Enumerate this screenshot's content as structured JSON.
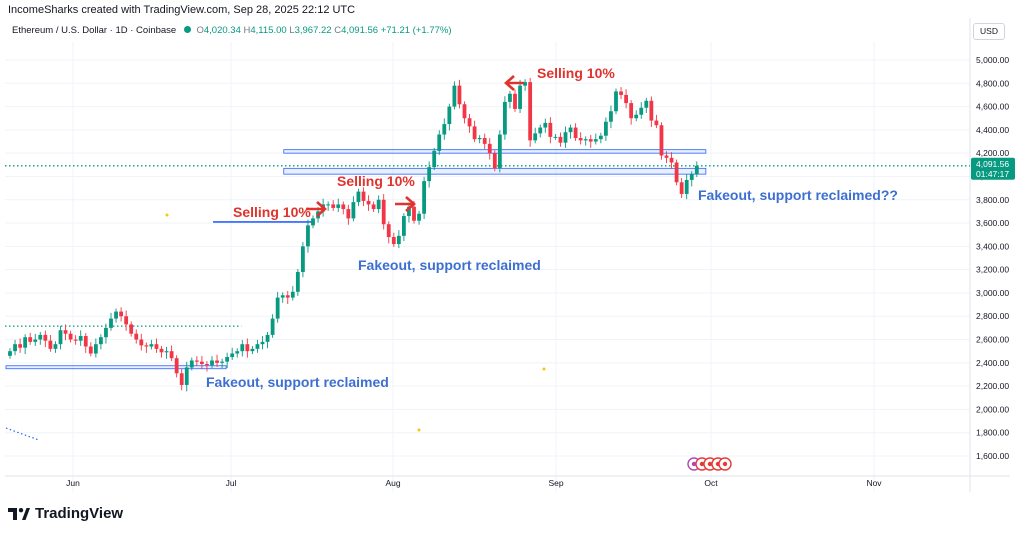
{
  "header": {
    "credit": "IncomeSharks created with TradingView.com, Sep 28, 2025 22:12 UTC",
    "symbol": "Ethereum / U.S. Dollar · 1D · Coinbase",
    "o_label": "O",
    "o_value": "4,020.34",
    "h_label": "H",
    "h_value": "4,115.00",
    "l_label": "L",
    "l_value": "3,967.22",
    "c_label": "C",
    "c_value": "4,091.56",
    "change": "+71.21 (+1.77%)"
  },
  "currency_button": "USD",
  "footer": {
    "brand": "TradingView",
    "logo_icon": "tradingview-logo-icon"
  },
  "colors": {
    "up": "#089981",
    "down": "#f23645",
    "annotation_red": "#e0332d",
    "annotation_blue": "#3d6fd1",
    "level_line": "#2962ff",
    "dotted_green": "#089981"
  },
  "chart_data": {
    "type": "candlestick",
    "ylim": [
      1500,
      5100
    ],
    "y_ticks": [
      "5,000.00",
      "4,800.00",
      "4,600.00",
      "4,400.00",
      "4,200.00",
      "4,000.00",
      "3,800.00",
      "3,600.00",
      "3,400.00",
      "3,200.00",
      "3,000.00",
      "2,800.00",
      "2,600.00",
      "2,400.00",
      "2,200.00",
      "2,000.00",
      "1,800.00",
      "1,600.00"
    ],
    "y_tick_values": [
      5000,
      4800,
      4600,
      4400,
      4200,
      4000,
      3800,
      3600,
      3400,
      3200,
      3000,
      2800,
      2600,
      2400,
      2200,
      2000,
      1800,
      1600
    ],
    "x_ticks": [
      "Jun",
      "Jul",
      "Aug",
      "Sep",
      "Oct",
      "Nov"
    ],
    "price_label": {
      "value": 4091.56,
      "text": "4,091.56",
      "countdown": "01:47:17"
    },
    "closes": [
      2500,
      2560,
      2530,
      2620,
      2580,
      2600,
      2640,
      2590,
      2520,
      2560,
      2680,
      2650,
      2600,
      2590,
      2630,
      2540,
      2480,
      2560,
      2620,
      2700,
      2780,
      2840,
      2800,
      2730,
      2650,
      2600,
      2550,
      2540,
      2560,
      2520,
      2490,
      2500,
      2440,
      2310,
      2210,
      2360,
      2420,
      2410,
      2390,
      2380,
      2420,
      2400,
      2410,
      2450,
      2480,
      2500,
      2560,
      2500,
      2520,
      2560,
      2580,
      2640,
      2780,
      2960,
      2980,
      2960,
      3010,
      3180,
      3400,
      3580,
      3640,
      3700,
      3760,
      3760,
      3730,
      3760,
      3720,
      3640,
      3780,
      3870,
      3790,
      3760,
      3720,
      3800,
      3590,
      3480,
      3420,
      3490,
      3660,
      3740,
      3620,
      3680,
      3960,
      4080,
      4220,
      4360,
      4450,
      4600,
      4780,
      4620,
      4500,
      4430,
      4320,
      4330,
      4280,
      4200,
      4070,
      4360,
      4640,
      4710,
      4580,
      4780,
      4810,
      4310,
      4370,
      4420,
      4460,
      4340,
      4340,
      4290,
      4380,
      4420,
      4330,
      4310,
      4320,
      4300,
      4320,
      4350,
      4470,
      4560,
      4730,
      4700,
      4630,
      4500,
      4530,
      4590,
      4650,
      4480,
      4440,
      4180,
      4160,
      4120,
      3950,
      3850,
      3970,
      4020,
      4091.56
    ],
    "levels": [
      {
        "name": "support-range-june",
        "y_low": 2350,
        "y_high": 2375,
        "from_index": 0,
        "to_index": 42
      },
      {
        "name": "support-line-july",
        "y": 3610,
        "from_index": 41,
        "to_index": 59
      },
      {
        "name": "support-range-august-low",
        "y_low": 4020,
        "y_high": 4070,
        "from_index": 55,
        "to_index": 137
      },
      {
        "name": "support-range-august-high",
        "y_low": 4200,
        "y_high": 4230,
        "from_index": 55,
        "to_index": 137
      }
    ],
    "dotted_levels": [
      {
        "name": "resistance-dotted-june",
        "y": 2715,
        "from_index": 0,
        "to_index": 45
      },
      {
        "name": "current-price-dotted",
        "y": 4091.56,
        "from_index": 0,
        "to_index": 138
      }
    ],
    "annotations": [
      {
        "text": "Selling 10%",
        "color": "red",
        "arrow": "right",
        "near_index": 44,
        "y": 3760
      },
      {
        "text": "Selling 10%",
        "color": "red",
        "arrow": "right",
        "near_index": 58,
        "y": 3870
      },
      {
        "text": "Selling 10%",
        "color": "red",
        "arrow": "left",
        "near_index": 81,
        "y": 4820
      },
      {
        "text": "Fakeout, support reclaimed",
        "color": "blue",
        "near_index": 30,
        "y": 2230
      },
      {
        "text": "Fakeout, support reclaimed",
        "color": "blue",
        "near_index": 57,
        "y": 3320
      },
      {
        "text": "Fakeout, support reclaimed??",
        "color": "blue",
        "near_index": 139,
        "y": 3930
      }
    ],
    "event_markers": {
      "near_index": 138,
      "y": 1570
    }
  }
}
